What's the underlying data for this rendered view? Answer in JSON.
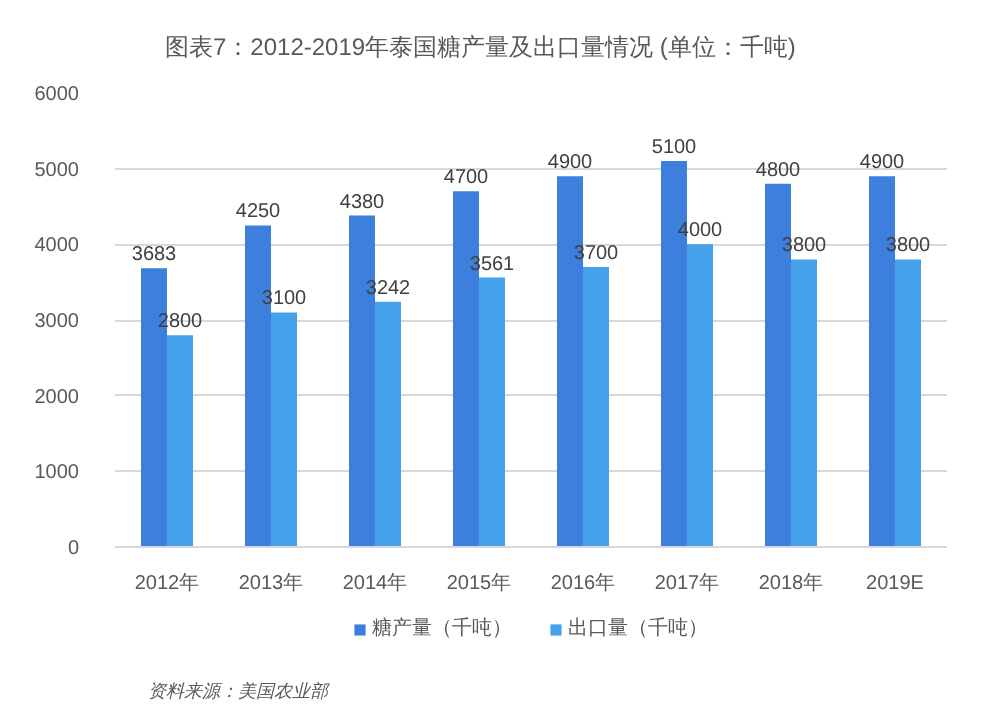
{
  "chart_data": {
    "type": "bar",
    "title": "图表7：2012-2019年泰国糖产量及出口量情况 (单位：千吨)",
    "categories": [
      "2012年",
      "2013年",
      "2014年",
      "2015年",
      "2016年",
      "2017年",
      "2018年",
      "2019E"
    ],
    "series": [
      {
        "name": "糖产量（千吨）",
        "color": "#3d7fdc",
        "values": [
          3683,
          4250,
          4380,
          4700,
          4900,
          5100,
          4800,
          4900
        ]
      },
      {
        "name": "出口量（千吨）",
        "color": "#45a2ea",
        "values": [
          2800,
          3100,
          3242,
          3561,
          3700,
          4000,
          3800,
          3800
        ]
      }
    ],
    "ylim": [
      0,
      6000
    ],
    "yticks": [
      0,
      1000,
      2000,
      3000,
      4000,
      5000,
      6000
    ],
    "grid": "y",
    "legend": "bottom",
    "data_labels": true,
    "annotations": [
      "资料来源：美国农业部"
    ]
  }
}
